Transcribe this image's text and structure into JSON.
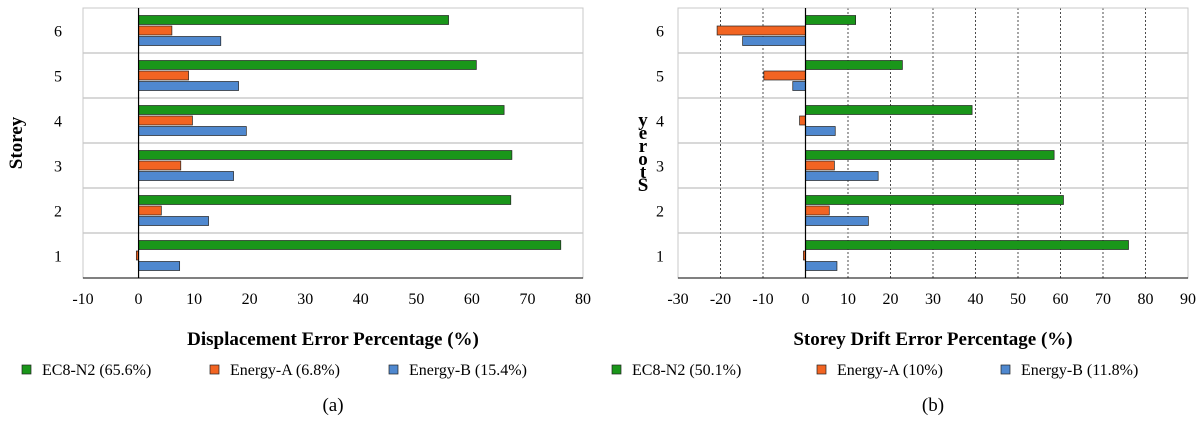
{
  "chart_data": [
    {
      "type": "bar",
      "orientation": "horizontal",
      "panel_caption": "(a)",
      "xlabel": "Displacement Error Percentage (%)",
      "ylabel": "Storey",
      "categories": [
        "1",
        "2",
        "3",
        "4",
        "5",
        "6"
      ],
      "xlim": [
        -10,
        80
      ],
      "xticks": [
        "-10",
        "0",
        "10",
        "20",
        "30",
        "40",
        "50",
        "60",
        "70",
        "80"
      ],
      "grid": "horizontal",
      "legend_position": "bottom",
      "series": [
        {
          "name": "EC8-N2 (65.6%)",
          "color": "#1a961a",
          "values": [
            76,
            67,
            67.2,
            65.8,
            60.8,
            55.8
          ]
        },
        {
          "name": "Energy-A (6.8%)",
          "color": "#f26422",
          "values": [
            -0.4,
            4.1,
            7.6,
            9.7,
            9.0,
            6.0
          ]
        },
        {
          "name": "Energy-B (15.4%)",
          "color": "#4f88cf",
          "values": [
            7.4,
            12.6,
            17.1,
            19.4,
            18.0,
            14.8
          ]
        }
      ]
    },
    {
      "type": "bar",
      "orientation": "horizontal",
      "panel_caption": "(b)",
      "xlabel": "Storey Drift Error Percentage (%)",
      "ylabel": "Storey",
      "categories": [
        "1",
        "2",
        "3",
        "4",
        "5",
        "6"
      ],
      "xlim": [
        -30,
        90
      ],
      "xticks": [
        "-30",
        "-20",
        "-10",
        "0",
        "10",
        "20",
        "30",
        "40",
        "50",
        "60",
        "70",
        "80",
        "90"
      ],
      "grid": "both",
      "legend_position": "bottom",
      "series": [
        {
          "name": "EC8-N2 (50.1%)",
          "color": "#1a961a",
          "values": [
            76,
            60.7,
            58.5,
            39.2,
            22.8,
            11.8
          ]
        },
        {
          "name": "Energy-A (10%)",
          "color": "#f26422",
          "values": [
            -0.5,
            5.6,
            6.8,
            -1.4,
            -9.8,
            -20.8
          ]
        },
        {
          "name": "Energy-B (11.8%)",
          "color": "#4f88cf",
          "values": [
            7.4,
            14.8,
            17.1,
            7.0,
            -3.0,
            -14.8
          ]
        }
      ]
    }
  ]
}
